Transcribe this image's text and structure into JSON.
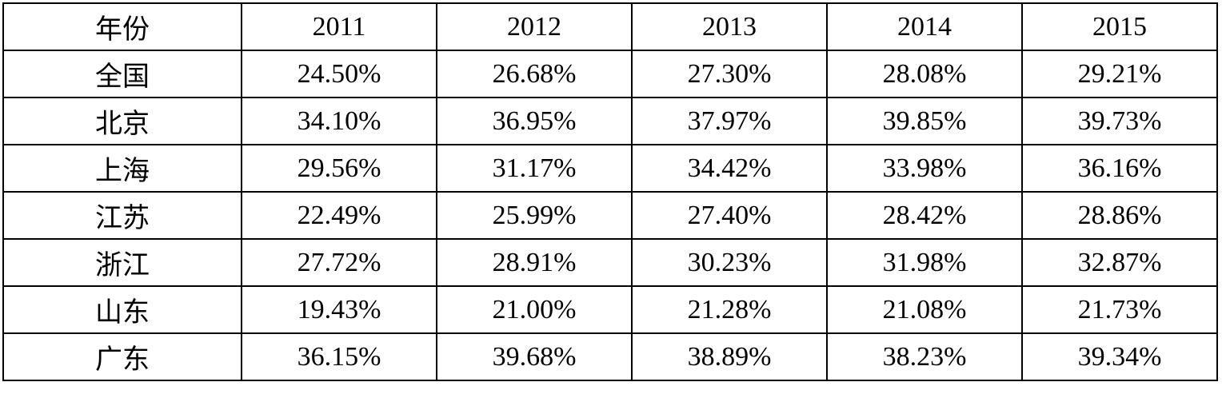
{
  "table": {
    "header": [
      "年份",
      "2011",
      "2012",
      "2013",
      "2014",
      "2015"
    ],
    "rows": [
      [
        "全国",
        "24.50%",
        "26.68%",
        "27.30%",
        "28.08%",
        "29.21%"
      ],
      [
        "北京",
        "34.10%",
        "36.95%",
        "37.97%",
        "39.85%",
        "39.73%"
      ],
      [
        "上海",
        "29.56%",
        "31.17%",
        "34.42%",
        "33.98%",
        "36.16%"
      ],
      [
        "江苏",
        "22.49%",
        "25.99%",
        "27.40%",
        "28.42%",
        "28.86%"
      ],
      [
        "浙江",
        "27.72%",
        "28.91%",
        "30.23%",
        "31.98%",
        "32.87%"
      ],
      [
        "山东",
        "19.43%",
        "21.00%",
        "21.28%",
        "21.08%",
        "21.73%"
      ],
      [
        "广东",
        "36.15%",
        "39.68%",
        "38.89%",
        "38.23%",
        "39.34%"
      ]
    ]
  }
}
